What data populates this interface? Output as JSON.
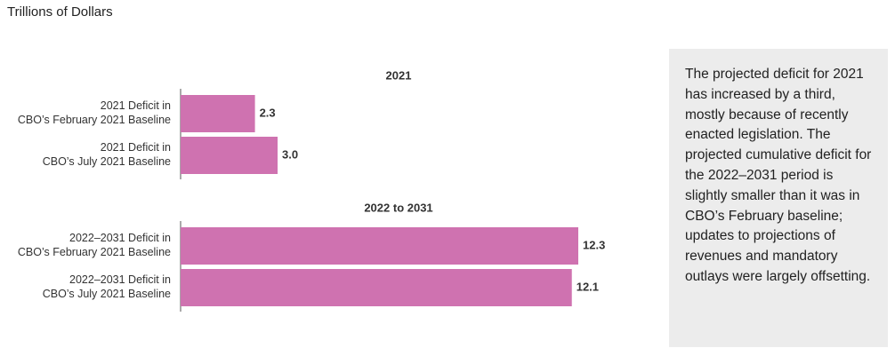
{
  "units_label": "Trillions of Dollars",
  "note": "The projected deficit for 2021 has increased by a third, mostly because of recently enacted legislation. The projected cumulative deficit for the 2022–2031 period is slightly smaller than it was in CBO’s February baseline; updates to projections of revenues and mandatory outlays were largely offsetting.",
  "chart_data": [
    {
      "type": "bar",
      "orientation": "horizontal",
      "title": "2021",
      "categories": [
        [
          "2021 Deficit in",
          "CBO’s February 2021 Baseline"
        ],
        [
          "2021 Deficit in",
          "CBO’s July 2021 Baseline"
        ]
      ],
      "values": [
        2.3,
        3.0
      ],
      "value_labels": [
        "2.3",
        "3.0"
      ],
      "color": "#cf72b0"
    },
    {
      "type": "bar",
      "orientation": "horizontal",
      "title": "2022 to 2031",
      "categories": [
        [
          "2022–2031 Deficit in",
          "CBO’s February 2021 Baseline"
        ],
        [
          "2022–2031 Deficit in",
          "CBO’s July 2021 Baseline"
        ]
      ],
      "values": [
        12.3,
        12.1
      ],
      "color": "#cf72b0"
    }
  ]
}
